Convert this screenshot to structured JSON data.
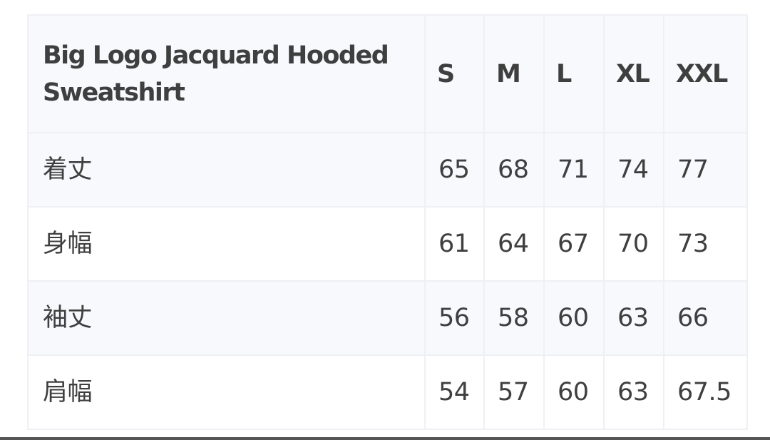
{
  "table": {
    "title": "Big Logo Jacquard Hooded Sweatshirt",
    "sizes": [
      "S",
      "M",
      "L",
      "XL",
      "XXL"
    ],
    "rows": [
      {
        "label": "着丈",
        "values": [
          "65",
          "68",
          "71",
          "74",
          "77"
        ]
      },
      {
        "label": "身幅",
        "values": [
          "61",
          "64",
          "67",
          "70",
          "73"
        ]
      },
      {
        "label": "袖丈",
        "values": [
          "56",
          "58",
          "60",
          "63",
          "66"
        ]
      },
      {
        "label": "肩幅",
        "values": [
          "54",
          "57",
          "60",
          "63",
          "67.5"
        ]
      }
    ]
  }
}
